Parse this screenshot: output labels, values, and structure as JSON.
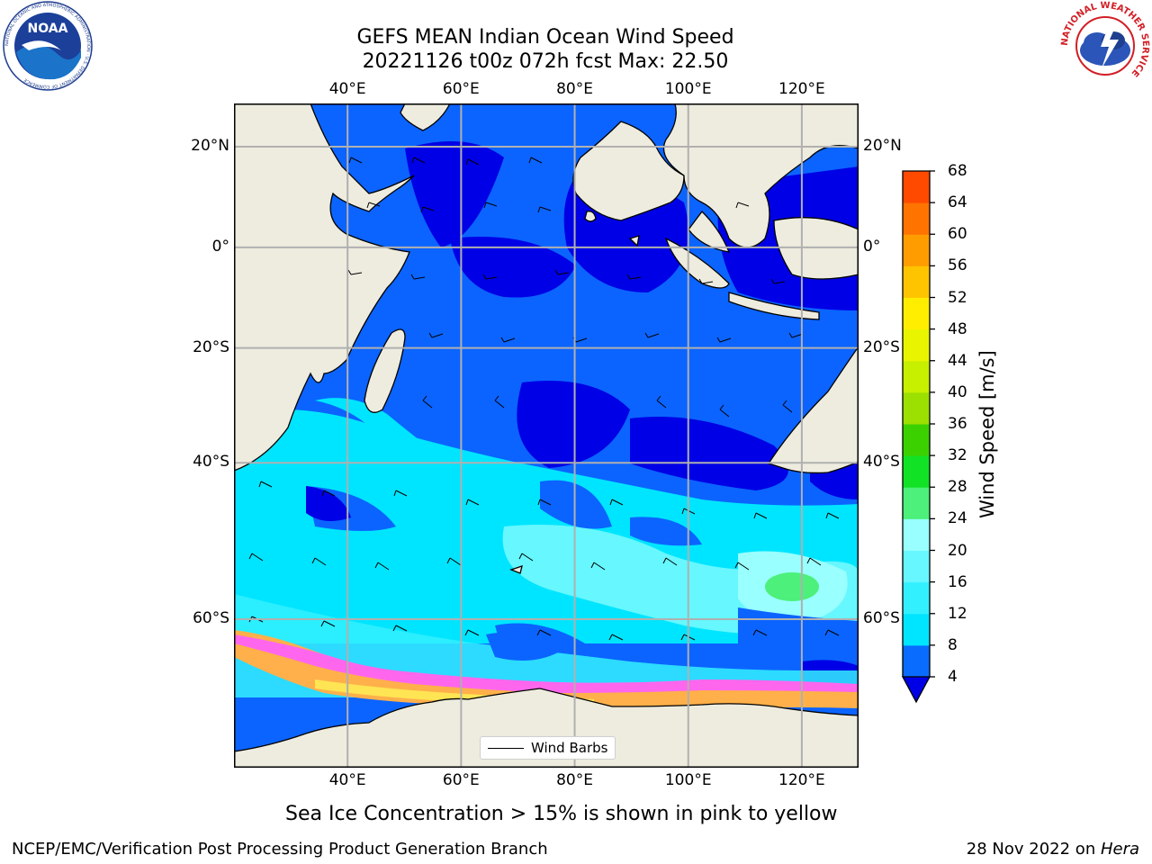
{
  "title": {
    "line1": "GEFS MEAN Indian Ocean Wind Speed",
    "line2": "20221126 t00z 072h fcst   Max: 22.50"
  },
  "axes": {
    "lon_labels": [
      "40°E",
      "60°E",
      "80°E",
      "100°E",
      "120°E"
    ],
    "lat_labels": [
      "20°N",
      "0°",
      "20°S",
      "40°S",
      "60°S"
    ]
  },
  "map": {
    "lon_range": [
      20,
      130
    ],
    "lat_range": [
      -72,
      28
    ],
    "grid_lons": [
      40,
      60,
      80,
      100,
      120
    ],
    "grid_lats": [
      20,
      0,
      -20,
      -40,
      -60
    ],
    "land_color": "#eeecdf",
    "ocean_base_color": "#0b64ff"
  },
  "legend": {
    "label": "Wind Barbs"
  },
  "colorbar": {
    "title": "Wind Speed [m/s]",
    "levels": [
      "4",
      "8",
      "12",
      "16",
      "20",
      "24",
      "28",
      "32",
      "36",
      "40",
      "44",
      "48",
      "52",
      "56",
      "60",
      "64",
      "68"
    ],
    "colors": [
      "#0a6cff",
      "#00e5ff",
      "#33f0ff",
      "#66f7ff",
      "#99ffff",
      "#4cf07a",
      "#12e226",
      "#3bd100",
      "#9be000",
      "#c7ef00",
      "#e9f500",
      "#ffee00",
      "#ffc400",
      "#ff9d00",
      "#ff7400",
      "#ff4a00",
      "#ff1f00"
    ],
    "under_color": "#0000e6"
  },
  "caption": "Sea Ice Concentration > 15% is shown in pink to yellow",
  "footer": {
    "left": "NCEP/EMC/Verification Post Processing Product Generation Branch",
    "right_prefix": "28 Nov 2022 on ",
    "right_host": "Hera"
  },
  "logos": {
    "noaa_text": "NOAA",
    "noaa_ring": "NATIONAL OCEANIC AND ATMOSPHERIC ADMINISTRATION · U.S. DEPARTMENT OF COMMERCE",
    "nws_ring": "NATIONAL WEATHER SERVICE"
  }
}
